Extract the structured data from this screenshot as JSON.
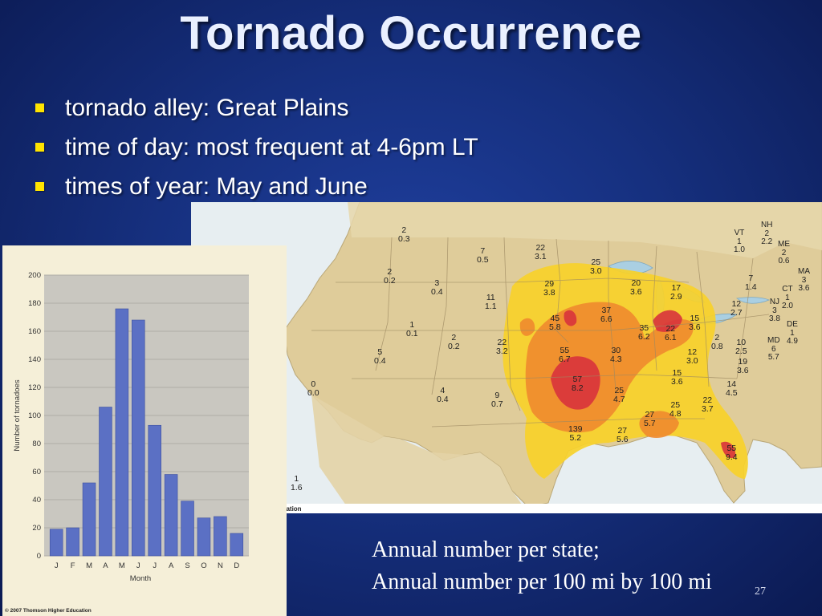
{
  "slide": {
    "title": "Tornado Occurrence",
    "bullets": [
      "tornado alley: Great Plains",
      "time of day: most frequent at 4-6pm LT",
      "times of year: May and June"
    ],
    "map_caption_line1": "Annual number per state;",
    "map_caption_line2": "Annual number per 100 mi by 100 mi",
    "page_number": "27",
    "bullet_color": "#ffe400"
  },
  "map": {
    "credit": "cation",
    "states": [
      {
        "abbr": "",
        "n": "2",
        "d": "0.3"
      },
      {
        "abbr": "",
        "n": "7",
        "d": "0.5"
      },
      {
        "abbr": "",
        "n": "22",
        "d": "3.1"
      },
      {
        "abbr": "",
        "n": "25",
        "d": "3.0"
      },
      {
        "abbr": "",
        "n": "2",
        "d": "0.2"
      },
      {
        "abbr": "",
        "n": "3",
        "d": "0.4"
      },
      {
        "abbr": "",
        "n": "29",
        "d": "3.8"
      },
      {
        "abbr": "",
        "n": "11",
        "d": "1.1"
      },
      {
        "abbr": "",
        "n": "20",
        "d": "3.6"
      },
      {
        "abbr": "",
        "n": "17",
        "d": "2.9"
      },
      {
        "abbr": "",
        "n": "45",
        "d": "5.8"
      },
      {
        "abbr": "",
        "n": "37",
        "d": "6.6"
      },
      {
        "abbr": "",
        "n": "1",
        "d": "0.1"
      },
      {
        "abbr": "",
        "n": "35",
        "d": "6.2"
      },
      {
        "abbr": "",
        "n": "22",
        "d": "6.1"
      },
      {
        "abbr": "",
        "n": "15",
        "d": "3.6"
      },
      {
        "abbr": "",
        "n": "2",
        "d": "0.2"
      },
      {
        "abbr": "",
        "n": "22",
        "d": "3.2"
      },
      {
        "abbr": "",
        "n": "55",
        "d": "6.7"
      },
      {
        "abbr": "",
        "n": "30",
        "d": "4.3"
      },
      {
        "abbr": "",
        "n": "2",
        "d": "0.8"
      },
      {
        "abbr": "",
        "n": "10",
        "d": "2.5"
      },
      {
        "abbr": "",
        "n": "5",
        "d": "0.4"
      },
      {
        "abbr": "",
        "n": "12",
        "d": "3.0"
      },
      {
        "abbr": "",
        "n": "57",
        "d": "8.2"
      },
      {
        "abbr": "",
        "n": "15",
        "d": "3.6"
      },
      {
        "abbr": "",
        "n": "19",
        "d": "3.6"
      },
      {
        "abbr": "",
        "n": "0",
        "d": "0.0"
      },
      {
        "abbr": "",
        "n": "4",
        "d": "0.4"
      },
      {
        "abbr": "",
        "n": "9",
        "d": "0.7"
      },
      {
        "abbr": "",
        "n": "25",
        "d": "4.7"
      },
      {
        "abbr": "",
        "n": "14",
        "d": "4.5"
      },
      {
        "abbr": "",
        "n": "25",
        "d": "4.8"
      },
      {
        "abbr": "",
        "n": "22",
        "d": "3.7"
      },
      {
        "abbr": "",
        "n": "27",
        "d": "5.7"
      },
      {
        "abbr": "",
        "n": "139",
        "d": "5.2"
      },
      {
        "abbr": "",
        "n": "27",
        "d": "5.6"
      },
      {
        "abbr": "",
        "n": "55",
        "d": "9.4"
      },
      {
        "abbr": "",
        "n": "1",
        "d": "1.6"
      },
      {
        "abbr": "",
        "n": "12",
        "d": "2.7"
      },
      {
        "abbr": "",
        "n": "7",
        "d": "1.4"
      }
    ],
    "northeast": [
      {
        "abbr": "NH",
        "n": "2",
        "d": "2.2"
      },
      {
        "abbr": "VT",
        "n": "1",
        "d": "1.0"
      },
      {
        "abbr": "ME",
        "n": "2",
        "d": "0.6"
      },
      {
        "abbr": "MA",
        "n": "3",
        "d": "3.6"
      },
      {
        "abbr": "CT",
        "n": "1",
        "d": "2.0"
      },
      {
        "abbr": "NJ",
        "n": "3",
        "d": "3.8"
      },
      {
        "abbr": "DE",
        "n": "1",
        "d": "4.9"
      },
      {
        "abbr": "MD",
        "n": "6",
        "d": "5.7"
      }
    ]
  },
  "chart_data": {
    "type": "bar",
    "categories": [
      "J",
      "F",
      "M",
      "A",
      "M",
      "J",
      "J",
      "A",
      "S",
      "O",
      "N",
      "D"
    ],
    "values": [
      19,
      20,
      52,
      106,
      176,
      168,
      93,
      58,
      39,
      27,
      28,
      16
    ],
    "xlabel": "Month",
    "ylabel": "Number of tornadoes",
    "ylim": [
      0,
      200
    ],
    "yticks": [
      0,
      20,
      40,
      60,
      80,
      100,
      120,
      140,
      160,
      180,
      200
    ],
    "grid": true,
    "bar_color": "#5b70c4",
    "credit": "© 2007 Thomson Higher Education"
  }
}
